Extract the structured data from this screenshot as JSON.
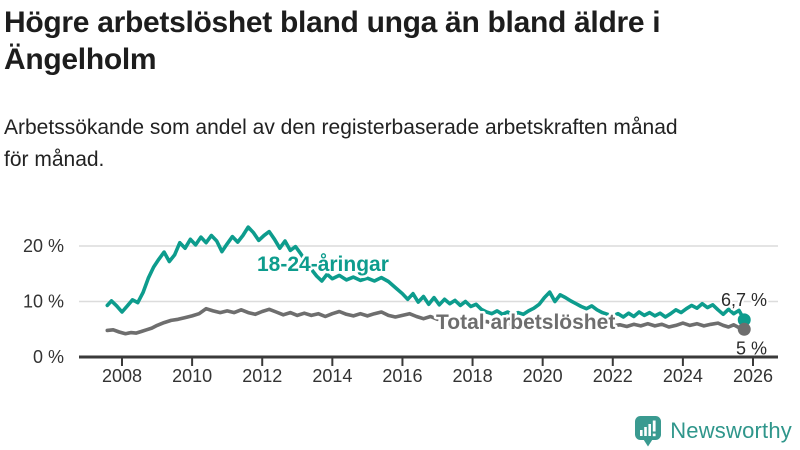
{
  "header": {
    "title": "Högre arbetslöshet bland unga än bland äldre i Ängelholm",
    "title_lines": [
      "Högre arbetslöshet bland unga än bland äldre i",
      "Ängelholm"
    ],
    "subtitle": "Arbetssökande som andel av den registerbaserade arbetskraften månad för månad.",
    "subtitle_lines": [
      "Arbetssökande som andel av den registerbaserade arbetskraften månad",
      "för månad."
    ]
  },
  "chart_data": {
    "type": "line",
    "title": "Högre arbetslöshet bland unga än bland äldre i Ängelholm",
    "subtitle": "Arbetssökande som andel av den registerbaserade arbetskraften månad för månad.",
    "unit": "%",
    "xlim": [
      2006.8,
      2026.7
    ],
    "ylim": [
      0,
      25
    ],
    "grid": "horizontal",
    "legend": "inline-labels",
    "x_ticks": [
      2008,
      2010,
      2012,
      2014,
      2016,
      2018,
      2020,
      2022,
      2024,
      2026
    ],
    "y_ticks": [
      {
        "value": 0,
        "label": "0 %"
      },
      {
        "value": 10,
        "label": "10 %"
      },
      {
        "value": 20,
        "label": "20 %"
      }
    ],
    "colors": {
      "youth": "#0d9c8d",
      "total": "#6e6e6e",
      "grid": "#dcdcdc",
      "axis": "#3a3a3a",
      "text": "#333333"
    },
    "series": [
      {
        "name": "18-24-åringar",
        "color": "#0d9c8d",
        "end_label": "6,7 %",
        "end_value": 6.7,
        "points": [
          [
            2007.58,
            9.3
          ],
          [
            2007.7,
            10.1
          ],
          [
            2007.85,
            9.2
          ],
          [
            2008.0,
            8.1
          ],
          [
            2008.15,
            9.2
          ],
          [
            2008.3,
            10.3
          ],
          [
            2008.45,
            9.8
          ],
          [
            2008.6,
            11.6
          ],
          [
            2008.75,
            14.2
          ],
          [
            2008.9,
            16.2
          ],
          [
            2009.05,
            17.6
          ],
          [
            2009.2,
            18.9
          ],
          [
            2009.35,
            17.2
          ],
          [
            2009.5,
            18.4
          ],
          [
            2009.65,
            20.6
          ],
          [
            2009.8,
            19.6
          ],
          [
            2009.95,
            21.2
          ],
          [
            2010.1,
            20.2
          ],
          [
            2010.25,
            21.6
          ],
          [
            2010.4,
            20.6
          ],
          [
            2010.55,
            21.9
          ],
          [
            2010.7,
            20.9
          ],
          [
            2010.85,
            19.0
          ],
          [
            2011.0,
            20.4
          ],
          [
            2011.15,
            21.7
          ],
          [
            2011.3,
            20.7
          ],
          [
            2011.45,
            21.9
          ],
          [
            2011.6,
            23.4
          ],
          [
            2011.75,
            22.4
          ],
          [
            2011.9,
            21.0
          ],
          [
            2012.05,
            21.9
          ],
          [
            2012.2,
            22.6
          ],
          [
            2012.35,
            21.2
          ],
          [
            2012.5,
            19.6
          ],
          [
            2012.65,
            20.9
          ],
          [
            2012.8,
            19.2
          ],
          [
            2012.95,
            19.9
          ],
          [
            2013.1,
            18.6
          ],
          [
            2013.25,
            17.1
          ],
          [
            2013.4,
            15.8
          ],
          [
            2013.55,
            14.6
          ],
          [
            2013.7,
            13.7
          ],
          [
            2013.85,
            14.9
          ],
          [
            2014.0,
            14.1
          ],
          [
            2014.2,
            14.7
          ],
          [
            2014.4,
            13.9
          ],
          [
            2014.6,
            14.4
          ],
          [
            2014.8,
            13.8
          ],
          [
            2015.0,
            14.2
          ],
          [
            2015.2,
            13.7
          ],
          [
            2015.4,
            14.3
          ],
          [
            2015.6,
            13.6
          ],
          [
            2015.8,
            12.5
          ],
          [
            2016.0,
            11.4
          ],
          [
            2016.15,
            10.4
          ],
          [
            2016.3,
            11.4
          ],
          [
            2016.45,
            9.9
          ],
          [
            2016.6,
            10.9
          ],
          [
            2016.75,
            9.5
          ],
          [
            2016.9,
            10.7
          ],
          [
            2017.05,
            9.4
          ],
          [
            2017.2,
            10.4
          ],
          [
            2017.35,
            9.6
          ],
          [
            2017.5,
            10.2
          ],
          [
            2017.65,
            9.3
          ],
          [
            2017.8,
            10.0
          ],
          [
            2017.95,
            9.1
          ],
          [
            2018.1,
            9.5
          ],
          [
            2018.25,
            8.6
          ],
          [
            2018.4,
            8.1
          ],
          [
            2018.55,
            7.8
          ],
          [
            2018.7,
            8.3
          ],
          [
            2018.85,
            7.7
          ],
          [
            2019.0,
            8.1
          ],
          [
            2019.15,
            7.6
          ],
          [
            2019.3,
            8.0
          ],
          [
            2019.45,
            7.7
          ],
          [
            2019.6,
            8.3
          ],
          [
            2019.75,
            8.8
          ],
          [
            2019.9,
            9.5
          ],
          [
            2020.05,
            10.7
          ],
          [
            2020.2,
            11.7
          ],
          [
            2020.35,
            10.0
          ],
          [
            2020.5,
            11.2
          ],
          [
            2020.65,
            10.7
          ],
          [
            2020.8,
            10.1
          ],
          [
            2020.95,
            9.6
          ],
          [
            2021.1,
            9.1
          ],
          [
            2021.25,
            8.7
          ],
          [
            2021.4,
            9.2
          ],
          [
            2021.55,
            8.5
          ],
          [
            2021.7,
            8.0
          ],
          [
            2021.85,
            7.7
          ],
          [
            2022.0,
            7.4
          ],
          [
            2022.15,
            7.8
          ],
          [
            2022.3,
            7.2
          ],
          [
            2022.45,
            7.9
          ],
          [
            2022.6,
            7.3
          ],
          [
            2022.75,
            8.1
          ],
          [
            2022.9,
            7.5
          ],
          [
            2023.05,
            8.0
          ],
          [
            2023.2,
            7.4
          ],
          [
            2023.35,
            7.9
          ],
          [
            2023.5,
            7.2
          ],
          [
            2023.65,
            7.8
          ],
          [
            2023.8,
            8.5
          ],
          [
            2023.95,
            8.0
          ],
          [
            2024.1,
            8.7
          ],
          [
            2024.25,
            9.3
          ],
          [
            2024.4,
            8.8
          ],
          [
            2024.55,
            9.6
          ],
          [
            2024.7,
            8.9
          ],
          [
            2024.85,
            9.4
          ],
          [
            2025.0,
            8.5
          ],
          [
            2025.15,
            7.7
          ],
          [
            2025.3,
            8.6
          ],
          [
            2025.45,
            7.8
          ],
          [
            2025.6,
            8.4
          ],
          [
            2025.75,
            6.7
          ]
        ]
      },
      {
        "name": "Total arbetslöshet",
        "color": "#6e6e6e",
        "end_label": "5 %",
        "end_value": 5,
        "points": [
          [
            2007.58,
            4.8
          ],
          [
            2007.75,
            4.9
          ],
          [
            2007.92,
            4.5
          ],
          [
            2008.1,
            4.2
          ],
          [
            2008.25,
            4.4
          ],
          [
            2008.4,
            4.3
          ],
          [
            2008.55,
            4.6
          ],
          [
            2008.7,
            4.9
          ],
          [
            2008.85,
            5.2
          ],
          [
            2009.0,
            5.7
          ],
          [
            2009.2,
            6.2
          ],
          [
            2009.4,
            6.6
          ],
          [
            2009.6,
            6.8
          ],
          [
            2009.8,
            7.1
          ],
          [
            2010.0,
            7.4
          ],
          [
            2010.2,
            7.8
          ],
          [
            2010.4,
            8.7
          ],
          [
            2010.6,
            8.3
          ],
          [
            2010.8,
            8.0
          ],
          [
            2011.0,
            8.3
          ],
          [
            2011.2,
            8.0
          ],
          [
            2011.4,
            8.5
          ],
          [
            2011.6,
            8.0
          ],
          [
            2011.8,
            7.7
          ],
          [
            2012.0,
            8.2
          ],
          [
            2012.2,
            8.6
          ],
          [
            2012.4,
            8.1
          ],
          [
            2012.6,
            7.6
          ],
          [
            2012.8,
            8.0
          ],
          [
            2013.0,
            7.5
          ],
          [
            2013.2,
            7.9
          ],
          [
            2013.4,
            7.5
          ],
          [
            2013.6,
            7.8
          ],
          [
            2013.8,
            7.3
          ],
          [
            2014.0,
            7.8
          ],
          [
            2014.2,
            8.2
          ],
          [
            2014.4,
            7.7
          ],
          [
            2014.6,
            7.4
          ],
          [
            2014.8,
            7.8
          ],
          [
            2015.0,
            7.4
          ],
          [
            2015.2,
            7.8
          ],
          [
            2015.4,
            8.1
          ],
          [
            2015.6,
            7.5
          ],
          [
            2015.8,
            7.2
          ],
          [
            2016.0,
            7.5
          ],
          [
            2016.2,
            7.8
          ],
          [
            2016.4,
            7.3
          ],
          [
            2016.6,
            6.9
          ],
          [
            2016.8,
            7.3
          ],
          [
            2017.0,
            6.8
          ],
          [
            2017.2,
            7.1
          ],
          [
            2017.4,
            6.7
          ],
          [
            2017.6,
            6.9
          ],
          [
            2017.8,
            6.4
          ],
          [
            2018.0,
            6.6
          ],
          [
            2018.2,
            6.2
          ],
          [
            2018.4,
            6.4
          ],
          [
            2018.6,
            6.0
          ],
          [
            2018.8,
            6.2
          ],
          [
            2019.0,
            5.9
          ],
          [
            2019.2,
            6.1
          ],
          [
            2019.4,
            5.8
          ],
          [
            2019.6,
            6.0
          ],
          [
            2019.8,
            6.2
          ],
          [
            2020.0,
            6.6
          ],
          [
            2020.2,
            7.1
          ],
          [
            2020.4,
            6.8
          ],
          [
            2020.6,
            7.0
          ],
          [
            2020.8,
            6.7
          ],
          [
            2021.0,
            6.5
          ],
          [
            2021.2,
            6.3
          ],
          [
            2021.4,
            6.1
          ],
          [
            2021.6,
            5.9
          ],
          [
            2021.8,
            5.8
          ],
          [
            2022.0,
            5.6
          ],
          [
            2022.2,
            5.8
          ],
          [
            2022.4,
            5.5
          ],
          [
            2022.6,
            5.9
          ],
          [
            2022.8,
            5.6
          ],
          [
            2023.0,
            6.0
          ],
          [
            2023.2,
            5.6
          ],
          [
            2023.4,
            5.9
          ],
          [
            2023.6,
            5.4
          ],
          [
            2023.8,
            5.7
          ],
          [
            2024.0,
            6.1
          ],
          [
            2024.2,
            5.7
          ],
          [
            2024.4,
            6.0
          ],
          [
            2024.6,
            5.6
          ],
          [
            2024.8,
            5.9
          ],
          [
            2025.0,
            6.1
          ],
          [
            2025.15,
            5.7
          ],
          [
            2025.3,
            5.4
          ],
          [
            2025.45,
            5.8
          ],
          [
            2025.6,
            5.3
          ],
          [
            2025.75,
            5.0
          ]
        ]
      }
    ]
  },
  "footer": {
    "brand": "Newsworthy",
    "brand_color": "#2f968b",
    "icon": "newsworthy-chart-bubble-icon"
  }
}
